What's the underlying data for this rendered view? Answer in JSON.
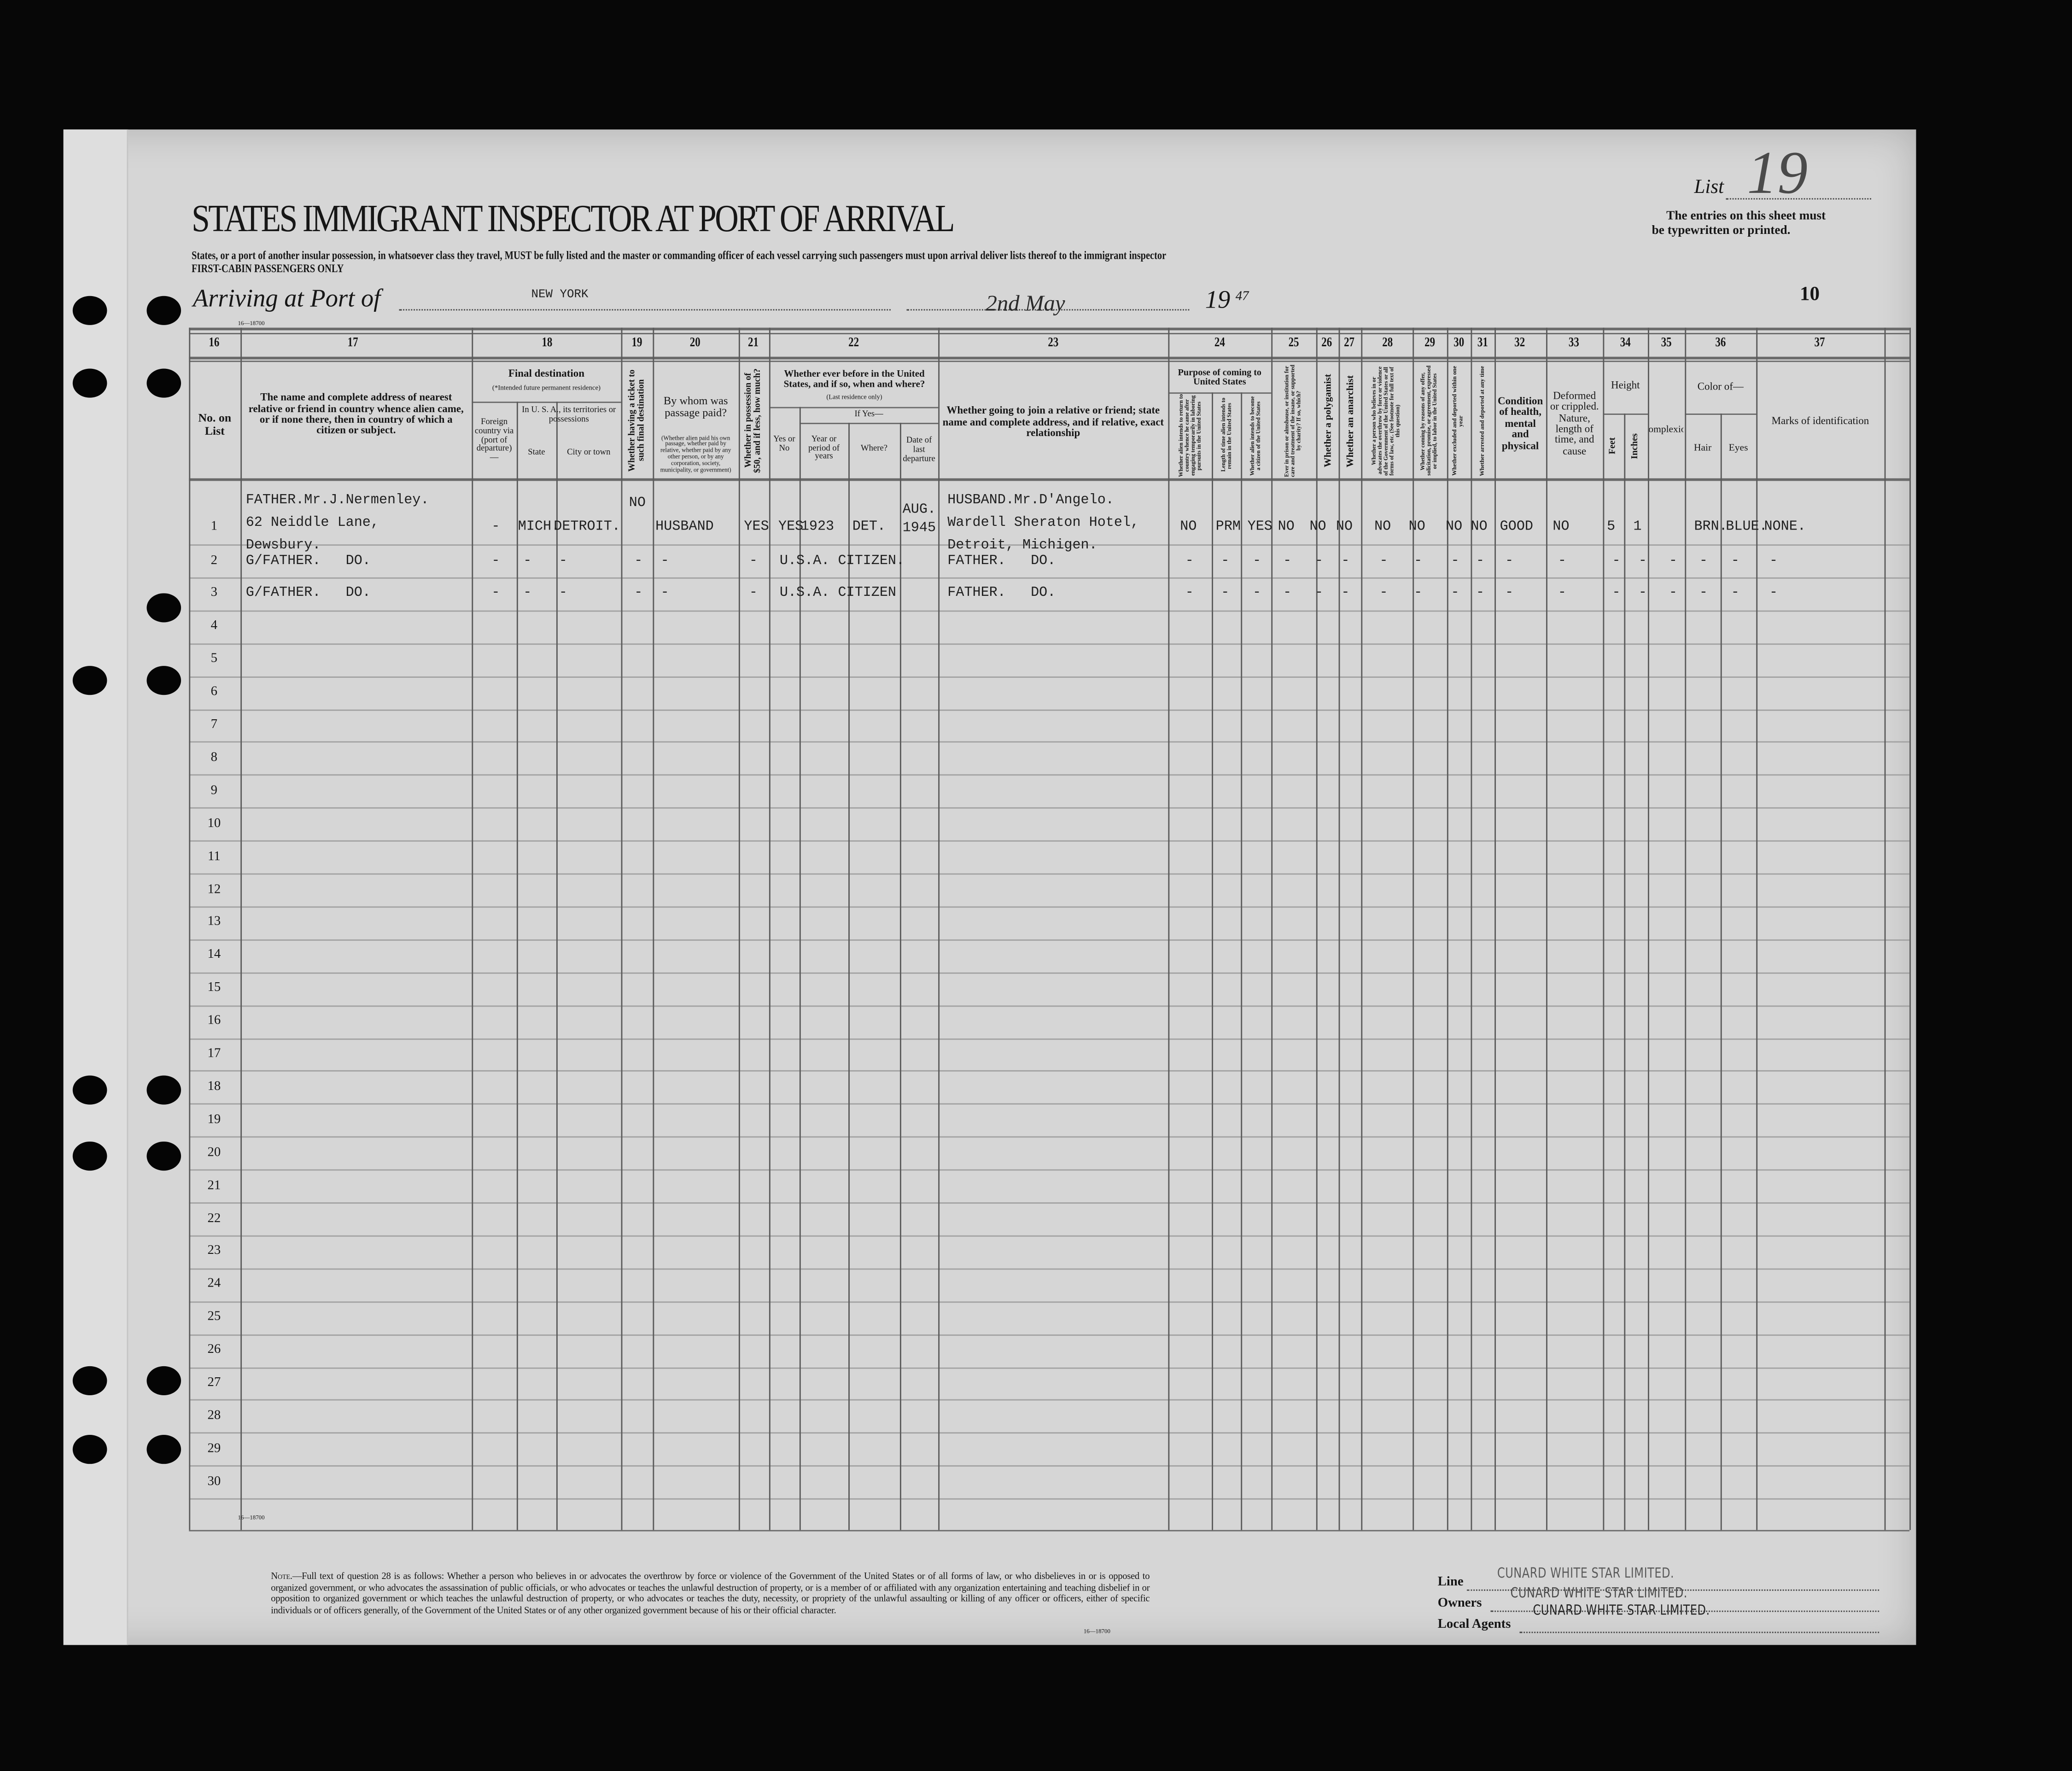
{
  "form": {
    "title": "STATES IMMIGRANT INSPECTOR AT PORT OF ARRIVAL",
    "instruction": "States, or a port of another insular possession, in whatsoever class they travel, MUST be fully listed and the master or commanding officer of each vessel carrying such passengers must upon arrival deliver lists thereof to the immigrant inspector",
    "class_line": "FIRST-CABIN PASSENGERS ONLY",
    "list_label": "List",
    "list_number": "19",
    "entries_note_1": "The entries on this sheet must",
    "entries_note_2": "be typewritten or printed.",
    "arriving_label": "Arriving at Port of",
    "port": "NEW YORK",
    "date": "2nd May",
    "year_prefix": "19",
    "year_suffix": "47",
    "sheet_number": "10",
    "form_code": "16—18700"
  },
  "table": {
    "column_numbers": [
      "16",
      "17",
      "18",
      "19",
      "20",
      "21",
      "22",
      "23",
      "24",
      "25",
      "26",
      "27",
      "28",
      "29",
      "30",
      "31",
      "32",
      "33",
      "34",
      "35",
      "36",
      "37"
    ],
    "headers": {
      "h16": "No. on List",
      "h17": "The name and complete address of nearest relative or friend in country whence alien came, or if none there, then in country of which a citizen or subject.",
      "h18": "Final destination",
      "h18sub": "(*Intended future permanent residence)",
      "h18a": "Foreign country via (port of departure)—",
      "h18b": "In U. S. A., its territories or possessions",
      "h18c": "State",
      "h18d": "City or town",
      "h19": "Whether having a ticket to such final destination",
      "h20": "By whom was passage paid?",
      "h20sub": "(Whether alien paid his own passage, whether paid by relative, whether paid by any other person, or by any corporation, society, municipality, or government)",
      "h21": "Whether in possession of $50, and if less, how much?",
      "h22": "Whether ever before in the United States, and if so, when and where?",
      "h22sub": "(Last residence only)",
      "h22if": "If Yes—",
      "h22a": "Yes or No",
      "h22b": "Year or period of years",
      "h22c": "Where?",
      "h22d": "Date of last departure",
      "h23": "Whether going to join a relative or friend; state name and complete address, and if relative, exact relationship",
      "h24": "Purpose of coming to United States",
      "h24a": "Whether alien intends to return to country whence he came after engaging temporarily in laboring pursuits in the United States",
      "h24b": "Length of time alien intends to remain in the United States",
      "h24c": "Whether alien intends to become a citizen of the United States",
      "h25": "Ever in prison or almshouse, or institution for care and treatment of the insane, or supported by charity? If so, which?",
      "h26": "Whether a polygamist",
      "h27": "Whether an anarchist",
      "h28": "Whether a person who believes in or advocates the overthrow by force or violence of the Government of the United States or all forms of law, etc. (See footnote for full text of this question)",
      "h29": "Whether coming by reasons of any offer, solicitation, promise, or agreement, expressed or implied, to labor in the United States",
      "h30": "Whether excluded and deported within one year",
      "h31": "Whether arrested and deported at any time",
      "h32": "Condition of health, mental and physical",
      "h33": "Deformed or crippled. Nature, length of time, and cause",
      "h34": "Height",
      "h34a": "Feet",
      "h34b": "Inches",
      "h35": "Complexion",
      "h36": "Color of—",
      "h36a": "Hair",
      "h36b": "Eyes",
      "h37": "Marks of identification"
    },
    "row_numbers": [
      "1",
      "2",
      "3",
      "4",
      "5",
      "6",
      "7",
      "8",
      "9",
      "10",
      "11",
      "12",
      "13",
      "14",
      "15",
      "16",
      "17",
      "18",
      "19",
      "20",
      "21",
      "22",
      "23",
      "24",
      "25",
      "26",
      "27",
      "28",
      "29",
      "30"
    ],
    "rows": [
      {
        "c17": [
          "FATHER.Mr.J.Nermenley.",
          "62 Neiddle Lane,",
          "Dewsbury."
        ],
        "c18_foreign": "-",
        "c18_state": "MICH.",
        "c18_city": "DETROIT.",
        "c19": "NO",
        "c20": "HUSBAND",
        "c21": "YES",
        "c22_yn": "YES",
        "c22_year": "1923",
        "c22_where": "DET.",
        "c22_date": [
          "AUG.",
          "1945"
        ],
        "c23": [
          "HUSBAND.Mr.D'Angelo.",
          "Wardell Sheraton Hotel,",
          "Detroit, Michigen."
        ],
        "c24a": "NO",
        "c24b": "PRM",
        "c24c": "YES",
        "c25": "NO",
        "c26": "NO",
        "c27": "NO",
        "c28": "NO",
        "c29": "NO",
        "c30": "NO",
        "c31": "NO",
        "c32": "GOOD",
        "c33": "NO",
        "c34_ft": "5",
        "c34_in": "1",
        "c35": "",
        "c36_hair": "BRN.",
        "c36_eyes": "BLUE.",
        "c37": "NONE."
      },
      {
        "c17": [
          "G/FATHER.   DO."
        ],
        "c18_foreign": "-",
        "c18_state": "-",
        "c18_city": "-",
        "c19": "-",
        "c20": "-",
        "c21": "-",
        "c22_span": "U.S.A. CITIZEN.",
        "c23": [
          "FATHER.   DO."
        ],
        "c24a": "-",
        "c24b": "-",
        "c24c": "-",
        "c25": "-",
        "c26": "-",
        "c27": "-",
        "c28": "-",
        "c29": "-",
        "c30": "-",
        "c31": "-",
        "c32": "-",
        "c33": "-",
        "c34_ft": "-",
        "c34_in": "-",
        "c35": "-",
        "c36_hair": "-",
        "c36_eyes": "-",
        "c37": "-"
      },
      {
        "c17": [
          "G/FATHER.   DO."
        ],
        "c18_foreign": "-",
        "c18_state": "-",
        "c18_city": "-",
        "c19": "-",
        "c20": "-",
        "c21": "-",
        "c22_span": "U.S.A. CITIZEN",
        "c23": [
          "FATHER.   DO."
        ],
        "c24a": "-",
        "c24b": "-",
        "c24c": "-",
        "c25": "-",
        "c26": "-",
        "c27": "-",
        "c28": "-",
        "c29": "-",
        "c30": "-",
        "c31": "-",
        "c32": "-",
        "c33": "-",
        "c34_ft": "-",
        "c34_in": "-",
        "c35": "-",
        "c36_hair": "-",
        "c36_eyes": "-",
        "c37": "-"
      }
    ]
  },
  "footer": {
    "note_label": "Note.",
    "note": "—Full text of question 28 is as follows: Whether a person who believes in or advocates the overthrow by force or violence of the Government of the United States or of all forms of law, or who disbelieves in or is opposed to organized government, or who advocates the assassination of public officials, or who advocates or teaches the unlawful destruction of property, or is a member of or affiliated with any organization entertaining and teaching disbelief in or opposition to organized government or which teaches the unlawful destruction of property, or who advocates or teaches the duty, necessity, or propriety of the unlawful assaulting or killing of any officer or officers, either of specific individuals or of officers generally, of the Government of the United States or of any other organized government because of his or their official character.",
    "form_code": "16—18700",
    "line_label": "Line",
    "owners_label": "Owners",
    "agents_label": "Local Agents",
    "line_stamp": "CUNARD WHITE STAR LIMITED.",
    "owners_stamp": "CUNARD WHITE STAR LIMITED.",
    "agents_stamp": "CUNARD WHITE STAR LIMITED."
  },
  "colors": {
    "paper": "#d6d6d6",
    "background": "#070707",
    "ink": "#161616"
  }
}
